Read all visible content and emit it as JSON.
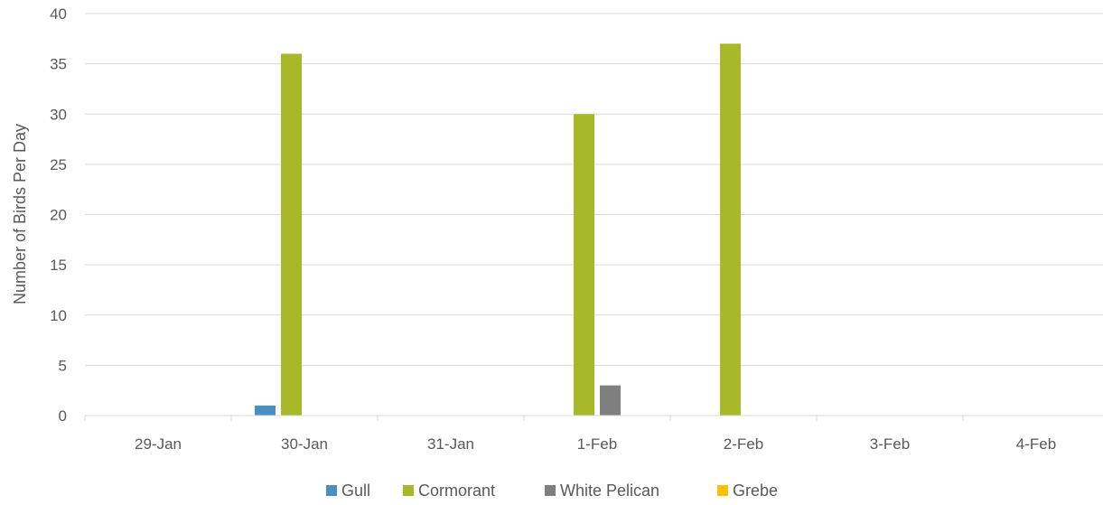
{
  "chart_data": {
    "type": "bar",
    "title": "",
    "xlabel": "",
    "ylabel": "Number of Birds Per Day",
    "ylim": [
      0,
      40
    ],
    "yticks": [
      0,
      5,
      10,
      15,
      20,
      25,
      30,
      35,
      40
    ],
    "grid": true,
    "legend_position": "bottom",
    "categories": [
      "29-Jan",
      "30-Jan",
      "31-Jan",
      "1-Feb",
      "2-Feb",
      "3-Feb",
      "4-Feb"
    ],
    "series": [
      {
        "name": "Gull",
        "color": "#4a8fc1",
        "values": [
          0,
          1,
          0,
          0,
          0,
          0,
          0
        ]
      },
      {
        "name": "Cormorant",
        "color": "#a7b929",
        "values": [
          0,
          36,
          0,
          30,
          37,
          0,
          0
        ]
      },
      {
        "name": "White Pelican",
        "color": "#7f7f7f",
        "values": [
          0,
          0,
          0,
          3,
          0,
          0,
          0
        ]
      },
      {
        "name": "Grebe",
        "color": "#ffc000",
        "values": [
          0,
          0,
          0,
          0,
          0,
          0,
          0
        ]
      }
    ]
  }
}
